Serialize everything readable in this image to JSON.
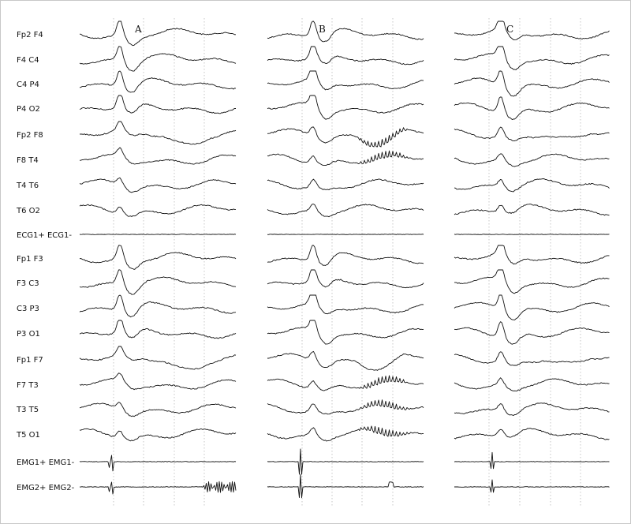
{
  "figure": {
    "panels": [
      "A",
      "B",
      "C"
    ],
    "channels": [
      "Fp2   F4",
      "F4   C4",
      "C4   P4",
      "P4   O2",
      "Fp2   F8",
      "F8   T4",
      "T4   T6",
      "T6   O2",
      "ECG1+ ECG1-",
      "Fp1   F3",
      "F3   C3",
      "C3   P3",
      "P3   O1",
      "Fp1   F7",
      "F7   T3",
      "T3   T5",
      "T5   O1",
      "EMG1+ EMG1-",
      "EMG2+ EMG2-"
    ],
    "colors": {
      "trace": "#111111",
      "grid": "#b9b9b9",
      "background": "#ffffff"
    }
  }
}
